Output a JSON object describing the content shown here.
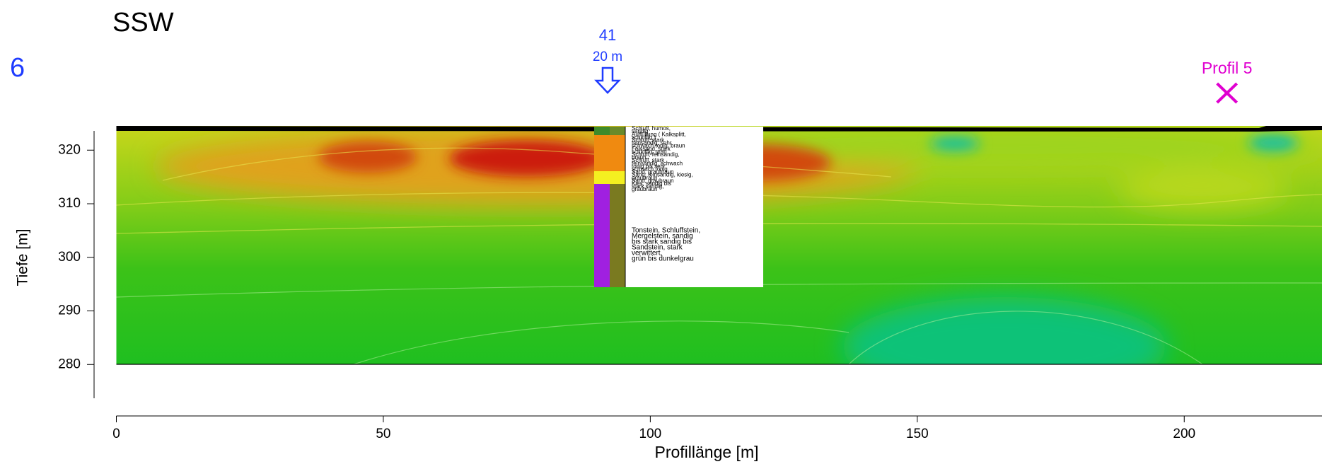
{
  "chart_data": {
    "type": "section",
    "title": "SSW",
    "side_label": "6",
    "xlabel": "Profillänge [m]",
    "ylabel": "Tiefe [m]",
    "xlim": [
      0,
      225.8
    ],
    "xticks": [
      0,
      50,
      100,
      150,
      200
    ],
    "ylim": [
      273.7,
      323.6
    ],
    "yticks": [
      280,
      290,
      300,
      310,
      320
    ],
    "borehole": {
      "label": "41",
      "depth_label": "20 m",
      "x": 92,
      "upper_layers": [
        "Schluff, humos,",
        "sandig",
        "Auffüllung ( Kalksplitt,",
        "schluffig )",
        "Schluff, stark",
        "feinsandig, sehr",
        "schwach tonig, braun",
        "Feinsand, stark",
        "schluffig, grau",
        "Schluff, feinsandig,",
        "braun",
        "Schluff, stark",
        "feinsandig, schwach",
        "tonig bis sehr",
        "schwach tonig",
        "Sand, graubraun",
        "Sand, feinsandig, kiesig,",
        "graubraun",
        "Sand, graubraun",
        "Kies, sandig bis",
        "stark sandig,",
        "graubraun"
      ],
      "lower_layers": [
        "Tonstein, Schluffstein,",
        "Mergelstein, sandig",
        "bis stark sandig bis",
        "Sandstein, stark",
        "verwittert,",
        "grün bis dunkelgrau"
      ]
    },
    "profile_marker": {
      "label": "Profil 5",
      "x": 208
    }
  }
}
